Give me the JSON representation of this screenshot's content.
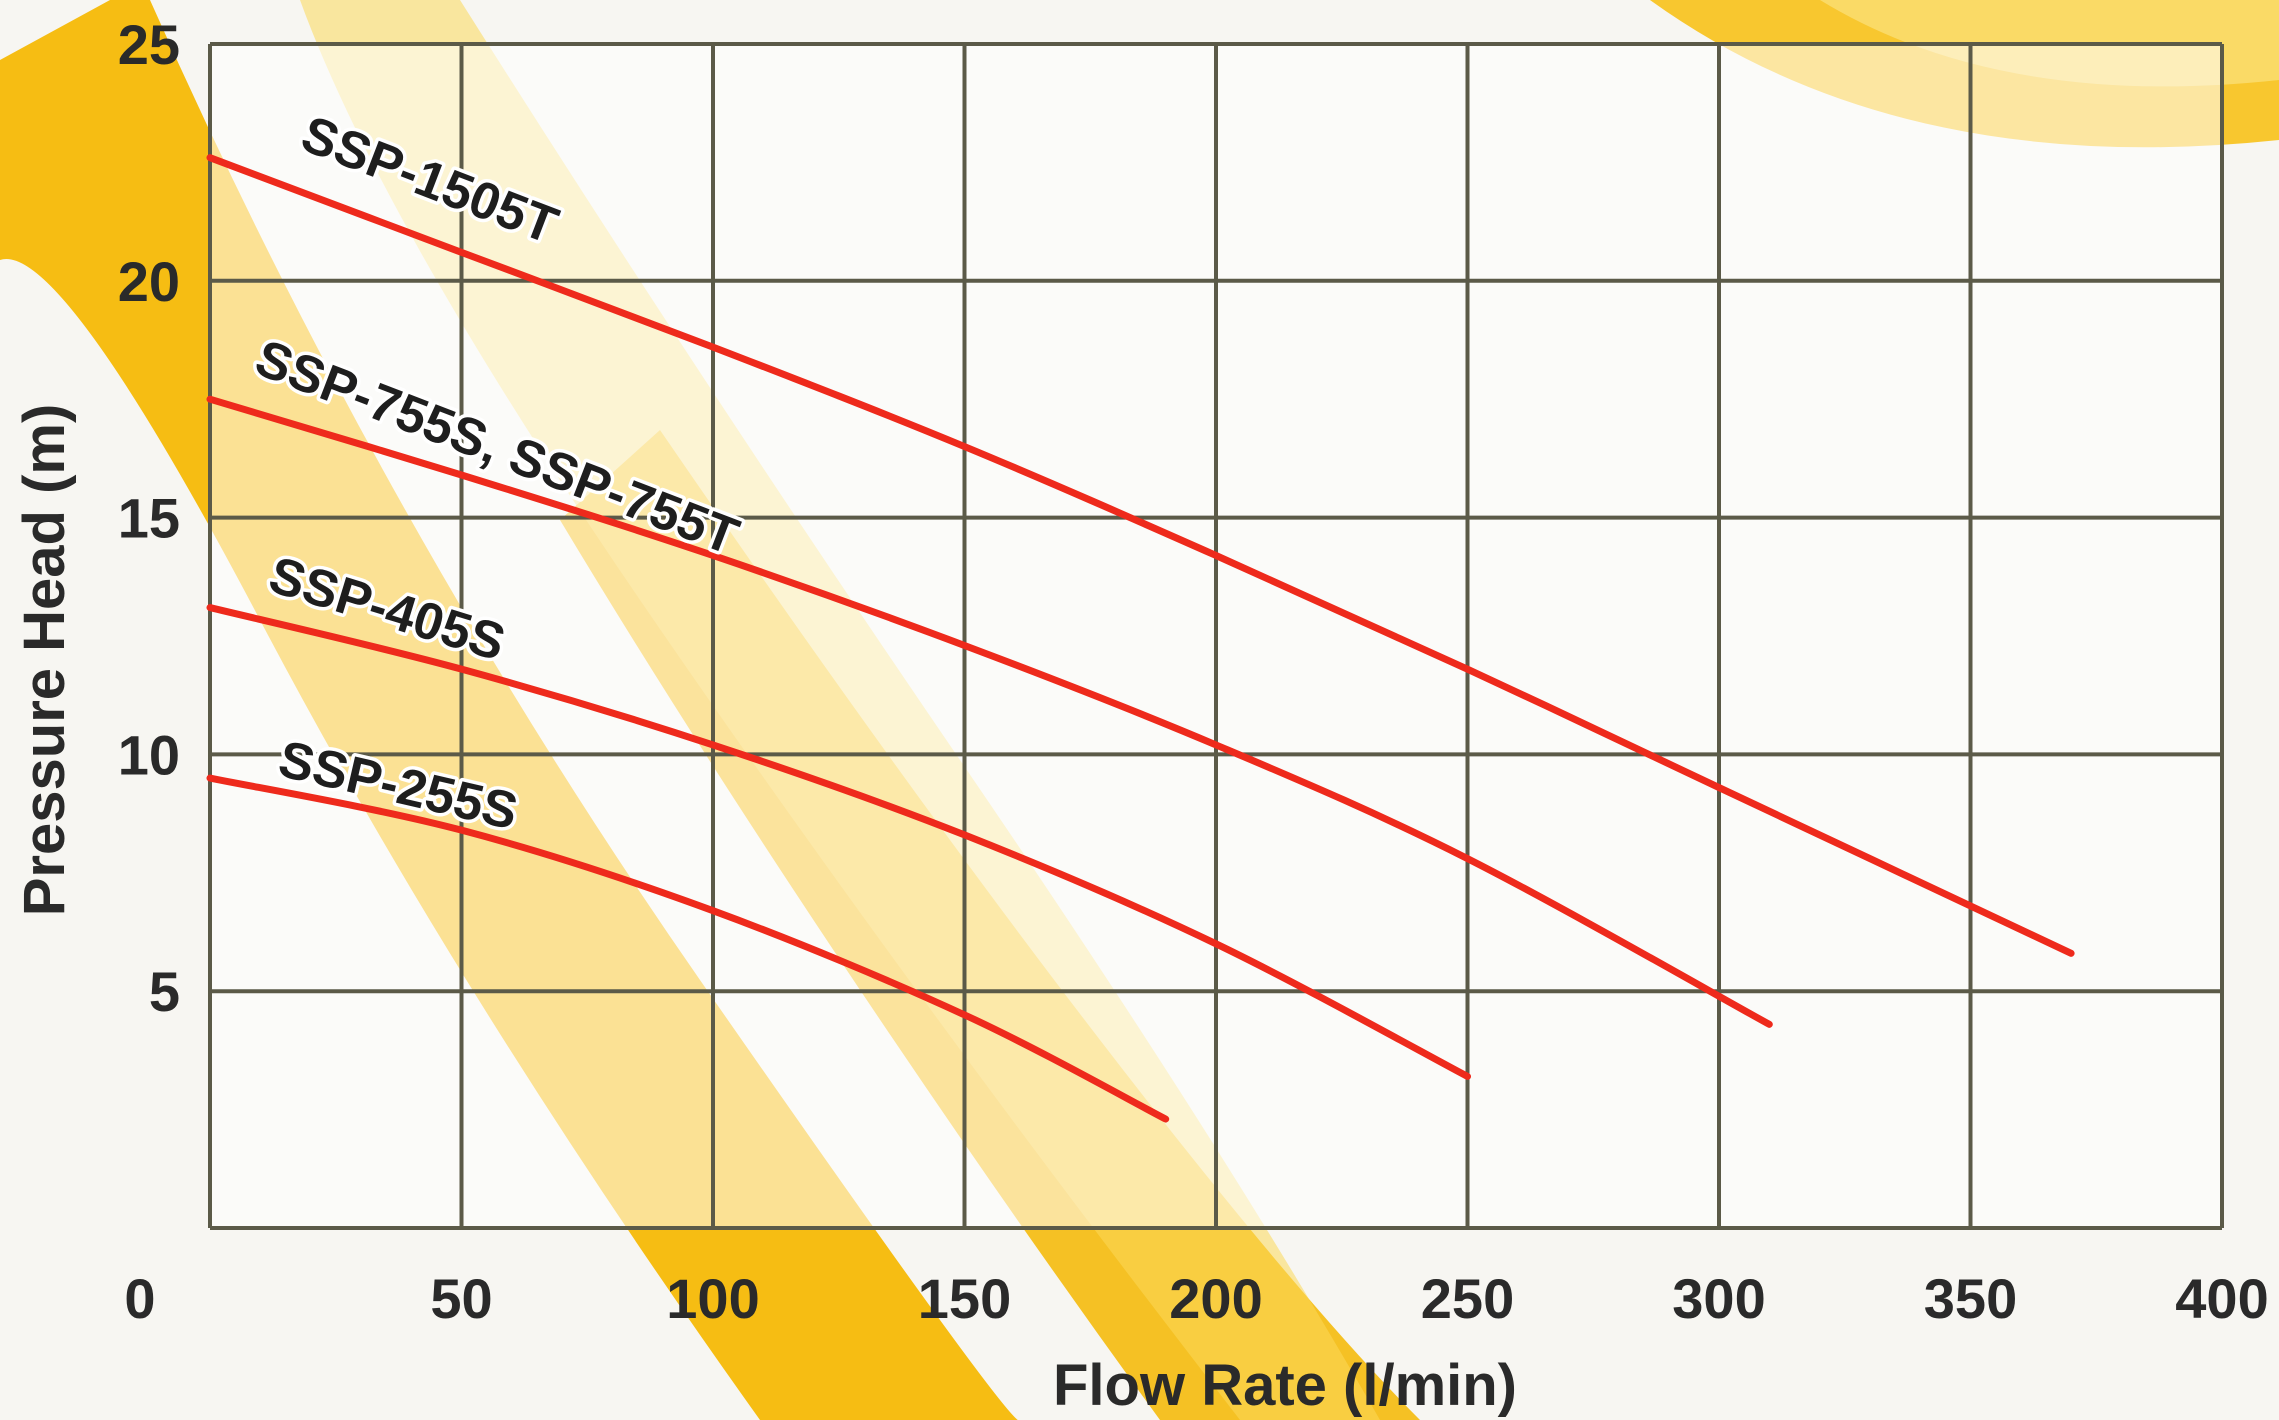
{
  "chart_data": {
    "type": "line",
    "title": "",
    "xlabel": "Flow Rate (l/min)",
    "ylabel": "Pressure Head (m)",
    "xlim": [
      0,
      400
    ],
    "ylim": [
      0,
      25
    ],
    "x_ticks": [
      "0",
      "50",
      "100",
      "150",
      "200",
      "250",
      "300",
      "350",
      "400"
    ],
    "y_ticks": [
      "5",
      "10",
      "15",
      "20",
      "25"
    ],
    "grid": true,
    "legend": "none (series labelled directly on curves)",
    "colors": {
      "curve": "#ee2a1c",
      "grid": "#5b5a48",
      "band_gold": "#f5b700",
      "band_light": "#fbd95a",
      "background": "#f7f6f2"
    },
    "series": [
      {
        "name": "SSP-1505T",
        "x": [
          0,
          50,
          100,
          150,
          200,
          250,
          300,
          370
        ],
        "y": [
          22.6,
          20.6,
          18.6,
          16.5,
          14.2,
          11.8,
          9.3,
          5.8
        ]
      },
      {
        "name": "SSP-755S, SSP-755T",
        "x": [
          0,
          50,
          100,
          150,
          200,
          250,
          310
        ],
        "y": [
          17.5,
          15.9,
          14.2,
          12.3,
          10.2,
          7.8,
          4.3
        ]
      },
      {
        "name": "SSP-405S",
        "x": [
          0,
          50,
          100,
          150,
          200,
          250
        ],
        "y": [
          13.1,
          11.8,
          10.2,
          8.3,
          6.0,
          3.2
        ]
      },
      {
        "name": "SSP-255S",
        "x": [
          0,
          50,
          100,
          150,
          190
        ],
        "y": [
          9.5,
          8.4,
          6.7,
          4.5,
          2.3
        ]
      }
    ]
  }
}
